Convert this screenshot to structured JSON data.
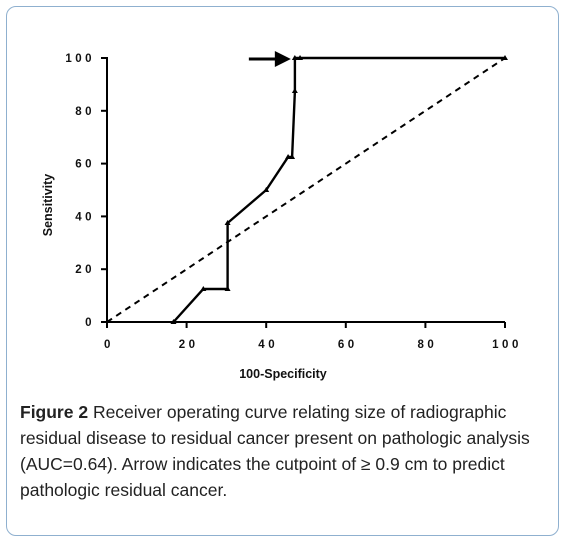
{
  "chart_data": {
    "type": "line",
    "xlabel": "100-Specificity",
    "ylabel": "Sensitivity",
    "xlim": [
      0,
      100
    ],
    "ylim": [
      0,
      100
    ],
    "x_ticks": [
      0,
      20,
      40,
      60,
      80,
      100
    ],
    "y_ticks": [
      0,
      20,
      40,
      60,
      80,
      100
    ],
    "x_tick_labels": [
      "0",
      "20",
      "40",
      "60",
      "80",
      "100"
    ],
    "y_tick_labels": [
      "0",
      "20",
      "40",
      "60",
      "80",
      "100"
    ],
    "grid": false,
    "series": [
      {
        "style": "solid",
        "points": [
          {
            "x": 16.7,
            "y": 0
          },
          {
            "x": 24.2,
            "y": 12.5
          },
          {
            "x": 30.3,
            "y": 12.5
          },
          {
            "x": 30.3,
            "y": 37.5
          },
          {
            "x": 40.0,
            "y": 50.0
          },
          {
            "x": 45.5,
            "y": 62.5
          },
          {
            "x": 46.5,
            "y": 62.5
          },
          {
            "x": 47.2,
            "y": 87.5
          },
          {
            "x": 47.2,
            "y": 100
          },
          {
            "x": 48.5,
            "y": 100
          },
          {
            "x": 100,
            "y": 100
          }
        ],
        "color": "#000000"
      },
      {
        "style": "dashed",
        "points": [
          {
            "x": 0,
            "y": 0
          },
          {
            "x": 100,
            "y": 100
          }
        ],
        "color": "#000000"
      }
    ],
    "annotations": [
      {
        "type": "arrow",
        "points_to": {
          "x": 47.2,
          "y": 100
        },
        "direction": "right"
      }
    ]
  },
  "caption": {
    "label": "Figure 2",
    "text": " Receiver operating curve relating size of radiographic residual disease to residual cancer present on pathologic analysis (AUC=0.64). Arrow indicates the cutpoint of ≥ 0.9 cm to predict pathologic residual cancer."
  },
  "colors": {
    "frame_border": "#8fb0cf",
    "ink": "#000000",
    "caption_text": "#222222"
  }
}
